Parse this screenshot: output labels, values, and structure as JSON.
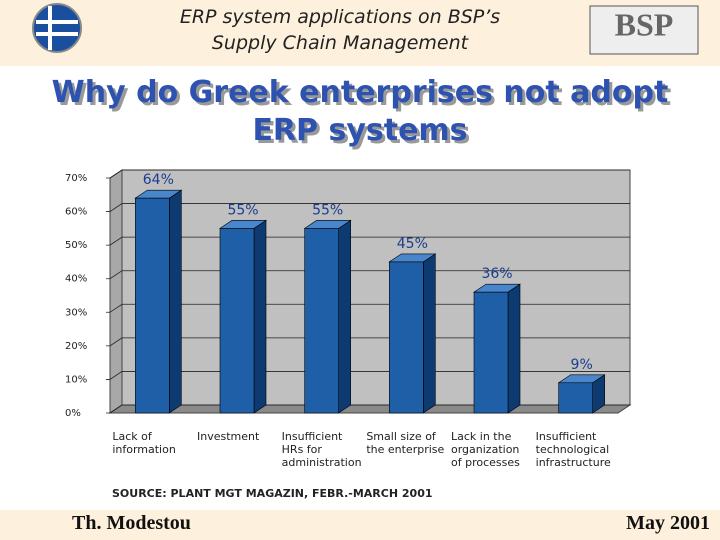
{
  "slide": {
    "header": "ERP system applications on BSP’s Supply Chain Management",
    "logo": "BSP",
    "title": "Why do Greek enterprises not adopt ERP systems",
    "source": "SOURCE: PLANT MGT MAGAZIN, FEBR.-MARCH 2001",
    "author": "Th. Modestou",
    "date": "May 2001"
  },
  "chart_data": {
    "type": "bar",
    "categories": [
      "Lack of information",
      "Investment",
      "Insufficient HRs for administration",
      "Small size of the enterprise",
      "Lack in the organization of processes",
      "Insufficient technological infrastructure"
    ],
    "values": [
      64,
      55,
      55,
      45,
      36,
      9
    ],
    "value_labels": [
      "64%",
      "55%",
      "55%",
      "45%",
      "36%",
      "9%"
    ],
    "color": "#1f5fa8",
    "ylim": [
      0,
      70
    ],
    "yticks": [
      {
        "value": 0,
        "label": "0%"
      },
      {
        "value": 10,
        "label": "10%"
      },
      {
        "value": 20,
        "label": "20%"
      },
      {
        "value": 30,
        "label": "30%"
      },
      {
        "value": 40,
        "label": "40%"
      },
      {
        "value": 50,
        "label": "50%"
      },
      {
        "value": 60,
        "label": "60%"
      },
      {
        "value": 70,
        "label": "70%"
      }
    ],
    "grid": true
  }
}
